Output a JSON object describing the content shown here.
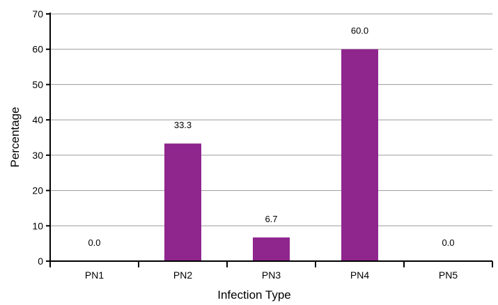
{
  "chart_data": {
    "type": "bar",
    "categories": [
      "PN1",
      "PN2",
      "PN3",
      "PN4",
      "PN5"
    ],
    "values": [
      0.0,
      33.3,
      6.7,
      60.0,
      0.0
    ],
    "data_labels": [
      "0.0",
      "33.3",
      "6.7",
      "60.0",
      "0.0"
    ],
    "title": "",
    "xlabel": "Infection Type",
    "ylabel": "Percentage",
    "ylim": [
      0,
      70
    ],
    "yticks": [
      0,
      10,
      20,
      30,
      40,
      50,
      60,
      70
    ],
    "grid": true,
    "legend": "none",
    "bar_color": "#8e268e",
    "grid_color": "#9a9a9a"
  }
}
